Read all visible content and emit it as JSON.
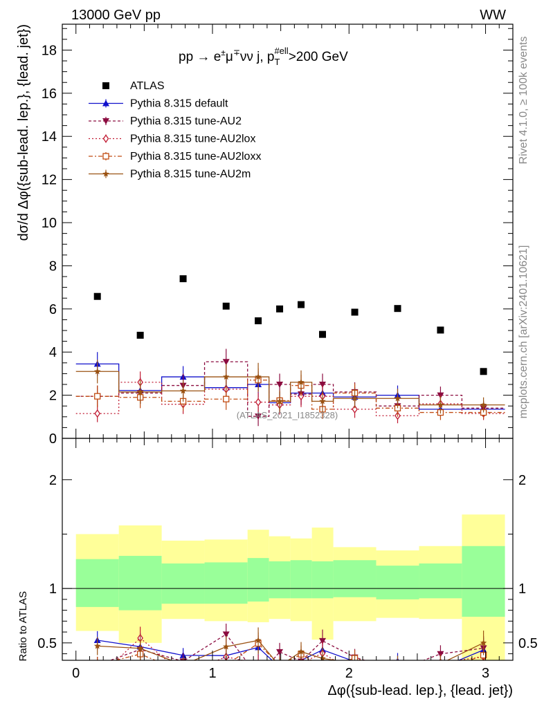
{
  "header": {
    "left": "13000 GeV pp",
    "right": "WW"
  },
  "side": {
    "rivet": "Rivet 4.1.0, ≥ 100k events",
    "mcplots": "mcplots.cern.ch [arXiv:2401.10621]"
  },
  "chart_data": {
    "type": "scatter",
    "title": "pp → e±μ∓νν j, p_T^#ell > 200 GeV",
    "title_parts": {
      "main": "pp → e",
      "pm": "±",
      "mu": "μ",
      "mp": "∓",
      "rest": "νν j, p",
      "sub": "T",
      "sup": "#ell",
      "cut": ">200 GeV"
    },
    "ylabel": "dσ/d Δφ({sub-lead. lep.}, {lead. jet})",
    "xlabel": "Δφ({sub-lead. lep.}, {lead. jet})",
    "ratio_ylabel": "Ratio to ATLAS",
    "watermark": "(ATLAS_2021_I1852328)",
    "xlim": [
      -0.1,
      3.2
    ],
    "ylim": [
      0,
      19.2
    ],
    "ratio_ylim": [
      0.34,
      2.38
    ],
    "x_ticks": [
      0,
      1,
      2,
      3
    ],
    "y_ticks": [
      0,
      2,
      4,
      6,
      8,
      10,
      12,
      14,
      16,
      18
    ],
    "ratio_ticks": [
      0.5,
      1,
      2
    ],
    "x_bins": [
      [
        0,
        0.314
      ],
      [
        0.314,
        0.628
      ],
      [
        0.628,
        0.942
      ],
      [
        0.942,
        1.257
      ],
      [
        1.257,
        1.414
      ],
      [
        1.414,
        1.571
      ],
      [
        1.571,
        1.728
      ],
      [
        1.728,
        1.885
      ],
      [
        1.885,
        2.199
      ],
      [
        2.199,
        2.513
      ],
      [
        2.513,
        2.827
      ],
      [
        2.827,
        3.142
      ]
    ],
    "x": [
      0.157,
      0.471,
      0.785,
      1.1,
      1.335,
      1.492,
      1.649,
      1.806,
      2.042,
      2.356,
      2.67,
      2.985
    ],
    "band_inner": [
      [
        0.83,
        1.27
      ],
      [
        0.8,
        1.3
      ],
      [
        0.86,
        1.23
      ],
      [
        0.86,
        1.24
      ],
      [
        0.88,
        1.28
      ],
      [
        0.91,
        1.25
      ],
      [
        0.91,
        1.26
      ],
      [
        0.91,
        1.25
      ],
      [
        0.92,
        1.26
      ],
      [
        0.9,
        1.21
      ],
      [
        0.91,
        1.23
      ],
      [
        0.74,
        1.39
      ]
    ],
    "band_outer": [
      [
        0.61,
        1.5
      ],
      [
        0.5,
        1.58
      ],
      [
        0.72,
        1.44
      ],
      [
        0.7,
        1.45
      ],
      [
        0.69,
        1.54
      ],
      [
        0.72,
        1.48
      ],
      [
        0.7,
        1.46
      ],
      [
        0.53,
        1.56
      ],
      [
        0.7,
        1.38
      ],
      [
        0.73,
        1.35
      ],
      [
        0.72,
        1.39
      ],
      [
        0.3,
        1.68
      ]
    ],
    "legend_position": "top-left",
    "series": [
      {
        "name": "ATLAS",
        "color": "#000000",
        "marker": "square-filled",
        "dash": "",
        "values": [
          6.58,
          4.78,
          7.4,
          6.13,
          5.45,
          6.0,
          6.2,
          4.82,
          5.85,
          6.02,
          5.02,
          3.1
        ],
        "errors": [
          0,
          0,
          0,
          0,
          0,
          0,
          0,
          0,
          0,
          0,
          0,
          0
        ]
      },
      {
        "name": "Pythia 8.315 default",
        "color": "#1010cc",
        "marker": "triangle-up",
        "dash": "",
        "values": [
          3.45,
          2.22,
          2.85,
          2.35,
          2.5,
          1.65,
          2.1,
          2.1,
          1.92,
          2.0,
          1.35,
          1.35
        ],
        "errors": [
          0.55,
          0.6,
          0.5,
          0.55,
          0.6,
          0.5,
          0.55,
          0.5,
          0.45,
          0.45,
          0.35,
          0.35
        ]
      },
      {
        "name": "Pythia 8.315 tune-AU2",
        "color": "#8b0b3f",
        "marker": "triangle-down",
        "dash": "4,3",
        "values": [
          1.95,
          2.1,
          2.45,
          3.55,
          1.02,
          2.5,
          2.05,
          2.5,
          2.15,
          1.5,
          2.0,
          1.4
        ],
        "errors": [
          0.5,
          0.5,
          0.55,
          0.6,
          0.45,
          0.5,
          0.5,
          0.5,
          0.45,
          0.45,
          0.4,
          0.35
        ]
      },
      {
        "name": "Pythia 8.315 tune-AU2lox",
        "color": "#c01830",
        "marker": "diamond-open",
        "dash": "2,3",
        "values": [
          1.15,
          2.6,
          1.58,
          2.28,
          1.68,
          1.55,
          1.95,
          1.95,
          1.35,
          1.05,
          1.6,
          1.15
        ],
        "errors": [
          0.4,
          0.5,
          0.45,
          0.5,
          0.45,
          0.45,
          0.5,
          0.5,
          0.4,
          0.35,
          0.4,
          0.3
        ]
      },
      {
        "name": "Pythia 8.315 tune-AU2loxx",
        "color": "#c04a10",
        "marker": "square-open",
        "dash": "6,3,2,3",
        "values": [
          1.95,
          1.9,
          1.72,
          1.82,
          2.7,
          1.75,
          2.45,
          1.35,
          2.1,
          1.4,
          1.2,
          1.2
        ],
        "errors": [
          0.5,
          0.5,
          0.45,
          0.5,
          0.55,
          0.45,
          0.5,
          0.45,
          0.45,
          0.4,
          0.35,
          0.3
        ]
      },
      {
        "name": "Pythia 8.315 tune-AU2m",
        "color": "#9a5212",
        "marker": "star",
        "dash": "",
        "values": [
          3.1,
          2.15,
          2.2,
          2.85,
          2.85,
          1.72,
          2.6,
          1.72,
          1.85,
          1.85,
          1.55,
          1.55
        ],
        "errors": [
          0.55,
          0.55,
          0.5,
          0.6,
          0.65,
          0.5,
          0.55,
          0.5,
          0.45,
          0.45,
          0.4,
          0.35
        ]
      }
    ]
  }
}
